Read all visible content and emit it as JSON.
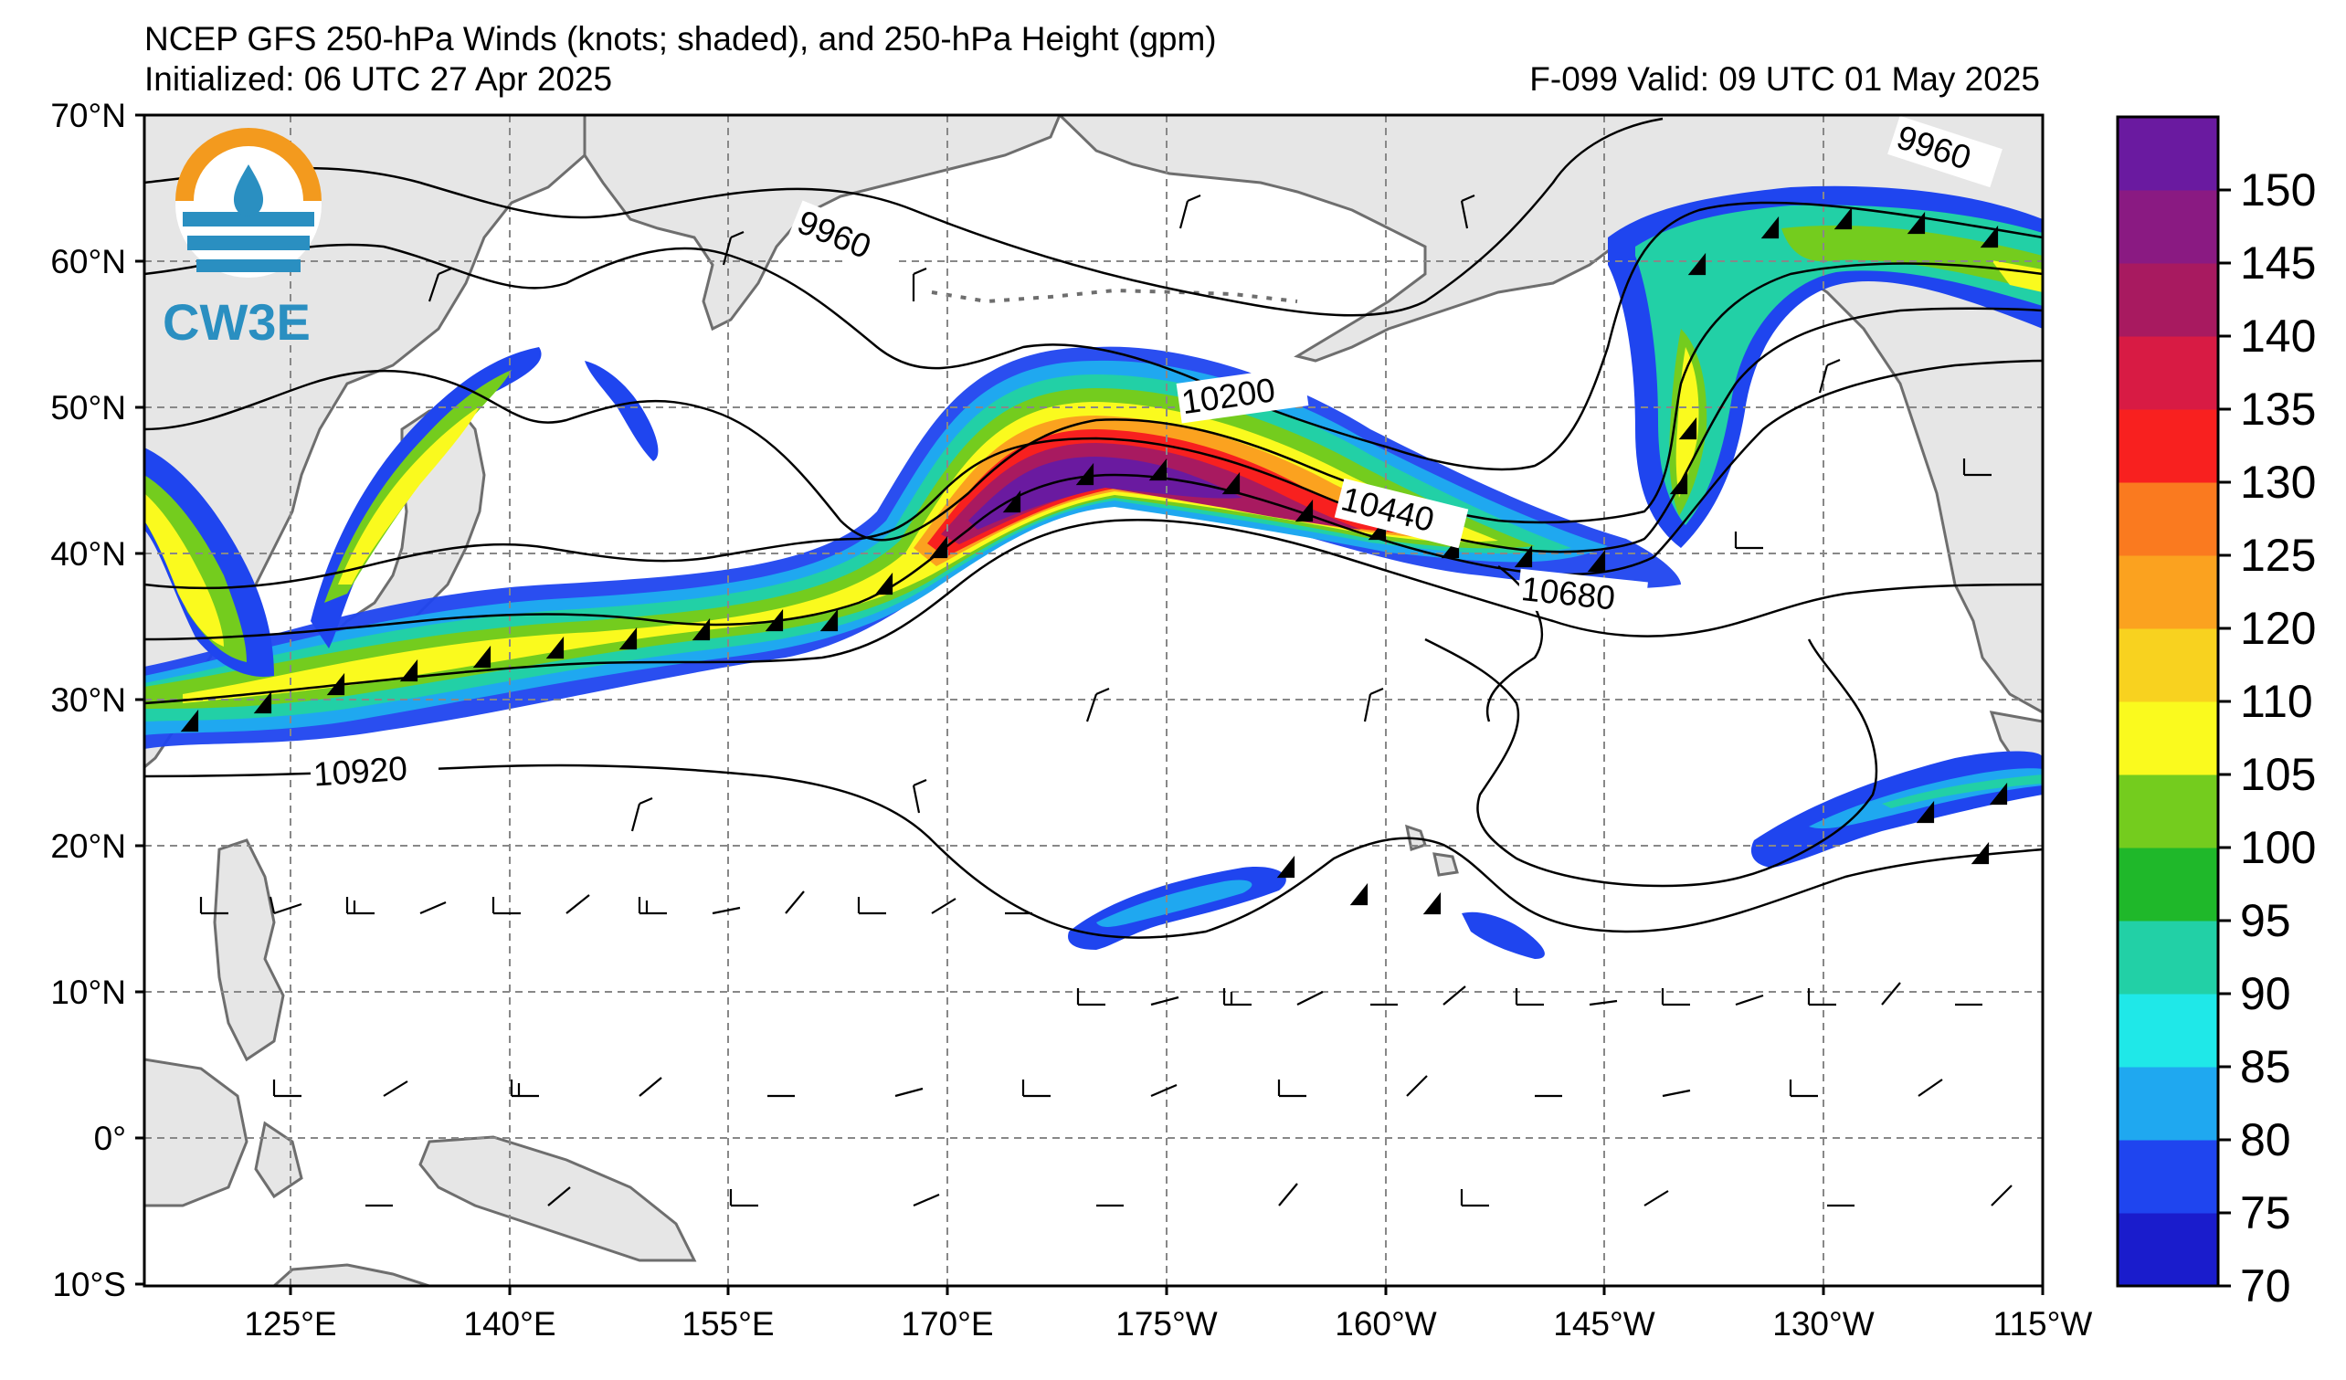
{
  "header": {
    "title": "NCEP GFS 250-hPa Winds (knots; shaded), and 250-hPa Height (gpm)",
    "initialized": "Initialized: 06 UTC 27 Apr 2025",
    "forecast": "F-099  Valid: 09 UTC 01 May 2025"
  },
  "logo": {
    "text": "CW3E",
    "colors": {
      "orange": "#f39a1e",
      "blue": "#2a8fc1"
    }
  },
  "map": {
    "lat_labels": [
      "70°N",
      "60°N",
      "50°N",
      "40°N",
      "30°N",
      "20°N",
      "10°N",
      "0°",
      "10°S"
    ],
    "lon_labels": [
      "125°E",
      "140°E",
      "155°E",
      "170°E",
      "175°W",
      "160°W",
      "145°W",
      "130°W",
      "115°W"
    ],
    "contour_labels": [
      "9960",
      "9960",
      "10200",
      "10440",
      "10680",
      "10920"
    ],
    "land_color": "#e6e6e6",
    "coast_color": "#6e6e6e"
  },
  "colorbar": {
    "ticks": [
      "150",
      "145",
      "140",
      "135",
      "130",
      "125",
      "120",
      "110",
      "105",
      "100",
      "95",
      "90",
      "85",
      "80",
      "75",
      "70"
    ],
    "colors": [
      "#1a1ccc",
      "#1f45ef",
      "#1fa8f0",
      "#1fe8e8",
      "#22d0a6",
      "#1fb82a",
      "#74cc1e",
      "#fafa1e",
      "#f8d21f",
      "#fba21f",
      "#fa7a1f",
      "#f8201f",
      "#d81b44",
      "#a81a60",
      "#8a1a82",
      "#6a1aa0"
    ]
  }
}
